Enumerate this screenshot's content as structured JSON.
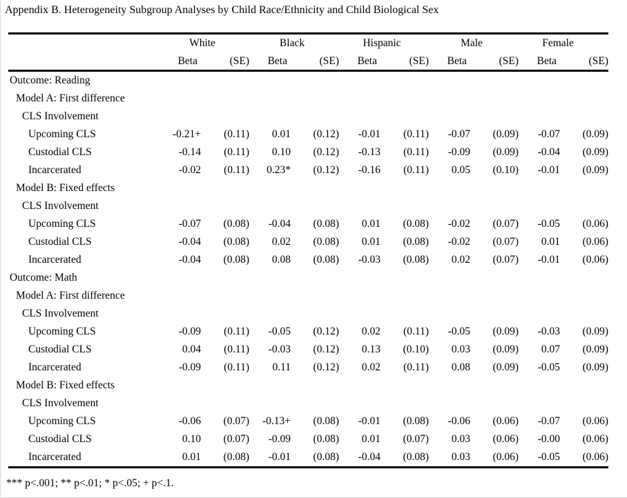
{
  "page": {
    "title": "Appendix B. Heterogeneity Subgroup Analyses by Child Race/Ethnicity and Child Biological Sex",
    "footnote": "*** p<.001; ** p<.01; * p<.05; + p<.1."
  },
  "table": {
    "groups": [
      "White",
      "Black",
      "Hispanic",
      "Male",
      "Female"
    ],
    "subheaders": {
      "beta": "Beta",
      "se": "(SE)"
    },
    "rows": [
      {
        "label": "Outcome: Reading",
        "indent": 0,
        "cells": []
      },
      {
        "label": "Model A: First difference",
        "indent": 1,
        "cells": []
      },
      {
        "label": "CLS Involvement",
        "indent": 2,
        "cells": []
      },
      {
        "label": "Upcoming CLS",
        "indent": 3,
        "cells": [
          "-0.21+",
          "(0.11)",
          "0.01",
          "(0.12)",
          "-0.01",
          "(0.11)",
          "-0.07",
          "(0.09)",
          "-0.07",
          "(0.09)"
        ]
      },
      {
        "label": "Custodial CLS",
        "indent": 3,
        "cells": [
          "-0.14",
          "(0.11)",
          "0.10",
          "(0.12)",
          "-0.13",
          "(0.11)",
          "-0.09",
          "(0.09)",
          "-0.04",
          "(0.09)"
        ]
      },
      {
        "label": "Incarcerated",
        "indent": 3,
        "cells": [
          "-0.02",
          "(0.11)",
          "0.23*",
          "(0.12)",
          "-0.16",
          "(0.11)",
          "0.05",
          "(0.10)",
          "-0.01",
          "(0.09)"
        ]
      },
      {
        "label": "Model B: Fixed effects",
        "indent": 1,
        "cells": []
      },
      {
        "label": "CLS Involvement",
        "indent": 2,
        "cells": []
      },
      {
        "label": "Upcoming CLS",
        "indent": 3,
        "cells": [
          "-0.07",
          "(0.08)",
          "-0.04",
          "(0.08)",
          "0.01",
          "(0.08)",
          "-0.02",
          "(0.07)",
          "-0.05",
          "(0.06)"
        ]
      },
      {
        "label": "Custodial CLS",
        "indent": 3,
        "cells": [
          "-0.04",
          "(0.08)",
          "0.02",
          "(0.08)",
          "0.01",
          "(0.08)",
          "-0.02",
          "(0.07)",
          "0.01",
          "(0.06)"
        ]
      },
      {
        "label": "Incarcerated",
        "indent": 3,
        "cells": [
          "-0.04",
          "(0.08)",
          "0.08",
          "(0.08)",
          "-0.03",
          "(0.08)",
          "0.02",
          "(0.07)",
          "-0.01",
          "(0.06)"
        ]
      },
      {
        "label": "Outcome: Math",
        "indent": 0,
        "cells": []
      },
      {
        "label": "Model A: First difference",
        "indent": 1,
        "cells": []
      },
      {
        "label": "CLS Involvement",
        "indent": 2,
        "cells": []
      },
      {
        "label": "Upcoming CLS",
        "indent": 3,
        "cells": [
          "-0.09",
          "(0.11)",
          "-0.05",
          "(0.12)",
          "0.02",
          "(0.11)",
          "-0.05",
          "(0.09)",
          "-0.03",
          "(0.09)"
        ]
      },
      {
        "label": "Custodial CLS",
        "indent": 3,
        "cells": [
          "0.04",
          "(0.11)",
          "-0.03",
          "(0.12)",
          "0.13",
          "(0.10)",
          "0.03",
          "(0.09)",
          "0.07",
          "(0.09)"
        ]
      },
      {
        "label": "Incarcerated",
        "indent": 3,
        "cells": [
          "-0.09",
          "(0.11)",
          "0.11",
          "(0.12)",
          "0.02",
          "(0.11)",
          "0.08",
          "(0.09)",
          "-0.05",
          "(0.09)"
        ]
      },
      {
        "label": "Model B: Fixed effects",
        "indent": 1,
        "cells": []
      },
      {
        "label": "CLS Involvement",
        "indent": 2,
        "cells": []
      },
      {
        "label": "Upcoming CLS",
        "indent": 3,
        "cells": [
          "-0.06",
          "(0.07)",
          "-0.13+",
          "(0.08)",
          "-0.01",
          "(0.08)",
          "-0.06",
          "(0.06)",
          "-0.07",
          "(0.06)"
        ]
      },
      {
        "label": "Custodial CLS",
        "indent": 3,
        "cells": [
          "0.10",
          "(0.07)",
          "-0.09",
          "(0.08)",
          "0.01",
          "(0.07)",
          "0.03",
          "(0.06)",
          "-0.00",
          "(0.06)"
        ]
      },
      {
        "label": "Incarcerated",
        "indent": 3,
        "cells": [
          "0.01",
          "(0.08)",
          "-0.01",
          "(0.08)",
          "-0.04",
          "(0.08)",
          "0.03",
          "(0.06)",
          "-0.05",
          "(0.06)"
        ]
      }
    ]
  }
}
